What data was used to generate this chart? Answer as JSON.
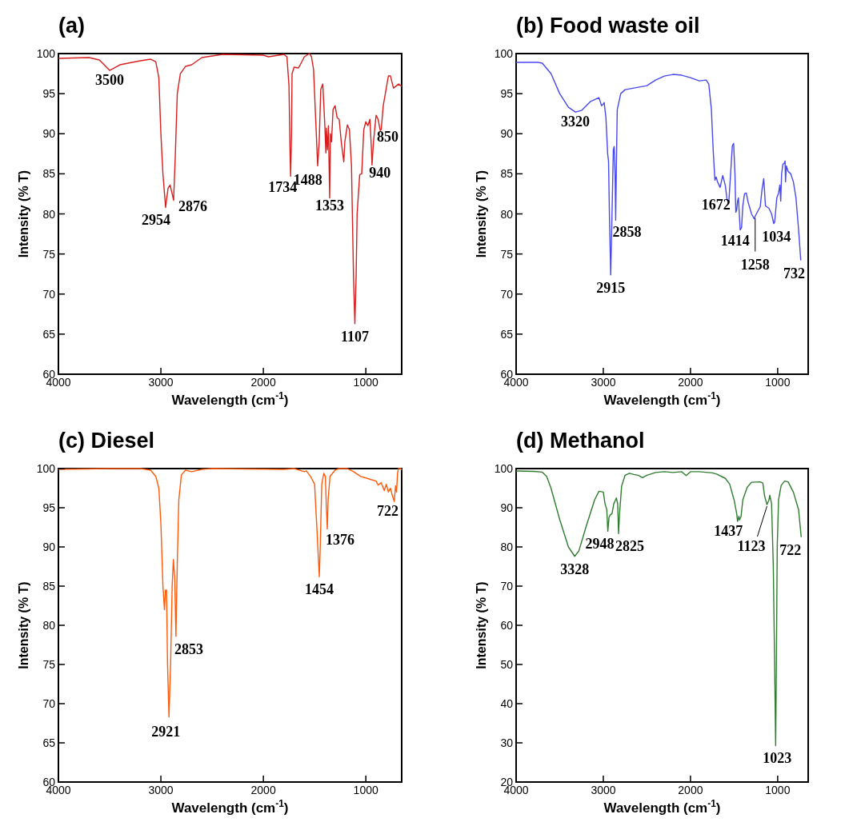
{
  "chart_data": [
    {
      "type": "line",
      "title": "(a)",
      "xlabel": "Wavelength (cm$^{-1}$)",
      "ylabel": "Intensity (% T)",
      "xlim": [
        4000,
        650
      ],
      "ylim": [
        60,
        100
      ],
      "xticks": [
        4000,
        3000,
        2000,
        1000
      ],
      "yticks": [
        60,
        65,
        70,
        75,
        80,
        85,
        90,
        95,
        100
      ],
      "series": [
        {
          "color": "#d81e1e",
          "x": [
            4000,
            3700,
            3600,
            3500,
            3400,
            3200,
            3100,
            3050,
            3020,
            3000,
            2980,
            2954,
            2930,
            2910,
            2890,
            2876,
            2860,
            2840,
            2810,
            2760,
            2700,
            2600,
            2400,
            2000,
            1950,
            1800,
            1770,
            1750,
            1740,
            1734,
            1725,
            1720,
            1700,
            1660,
            1640,
            1600,
            1550,
            1530,
            1510,
            1490,
            1470,
            1455,
            1440,
            1420,
            1400,
            1390,
            1385,
            1375,
            1365,
            1353,
            1345,
            1335,
            1320,
            1300,
            1280,
            1260,
            1240,
            1225,
            1215,
            1205,
            1180,
            1160,
            1140,
            1130,
            1120,
            1107,
            1095,
            1085,
            1060,
            1040,
            1020,
            1000,
            980,
            960,
            945,
            940,
            925,
            900,
            880,
            860,
            850,
            830,
            780,
            760,
            730,
            680,
            650
          ],
          "values": [
            99.4,
            99.5,
            99.2,
            97.9,
            98.6,
            99.1,
            99.3,
            99.0,
            97,
            90,
            85,
            80.8,
            83.2,
            83.6,
            82.5,
            81.7,
            87,
            95,
            97.5,
            98.4,
            98.6,
            99.5,
            99.9,
            99.8,
            99.6,
            99.9,
            99.6,
            96,
            88,
            84.7,
            90,
            97.5,
            98.3,
            98.2,
            98.6,
            99.6,
            100,
            99.6,
            98,
            92,
            86,
            89,
            95.5,
            96.2,
            91,
            87.6,
            90.7,
            88,
            91,
            82,
            90,
            89,
            93,
            93.5,
            92,
            91.8,
            89,
            87.5,
            86.5,
            89,
            91.1,
            90.5,
            86,
            79,
            72,
            66.3,
            72,
            80,
            84.9,
            85,
            90.5,
            91.5,
            91,
            91.8,
            88,
            86.1,
            89,
            92.3,
            91.8,
            90.4,
            90.5,
            93.5,
            97.2,
            97.2,
            95.7,
            96.2,
            95.9
          ]
        }
      ],
      "annotations": [
        {
          "text": "3500",
          "x": 3500,
          "y": 97.9
        },
        {
          "text": "2954",
          "x": 2954,
          "y": 80.8
        },
        {
          "text": "2876",
          "x": 2876,
          "y": 81.7
        },
        {
          "text": "1734",
          "x": 1734,
          "y": 84.7
        },
        {
          "text": "1488",
          "x": 1488,
          "y": 86
        },
        {
          "text": "1353",
          "x": 1353,
          "y": 82
        },
        {
          "text": "1107",
          "x": 1107,
          "y": 66.3
        },
        {
          "text": "940",
          "x": 940,
          "y": 86.1
        },
        {
          "text": "850",
          "x": 850,
          "y": 90.4
        }
      ]
    },
    {
      "type": "line",
      "title": "(b) Food waste oil",
      "xlabel": "Wavelength (cm$^{-1}$)",
      "ylabel": "Intensity (% T)",
      "xlim": [
        4000,
        650
      ],
      "ylim": [
        60,
        100
      ],
      "xticks": [
        4000,
        3000,
        2000,
        1000
      ],
      "yticks": [
        60,
        65,
        70,
        75,
        80,
        85,
        90,
        95,
        100
      ],
      "series": [
        {
          "color": "#4848f0",
          "x": [
            4000,
            3750,
            3700,
            3600,
            3500,
            3400,
            3320,
            3250,
            3150,
            3050,
            3020,
            3000,
            2990,
            2970,
            2950,
            2940,
            2930,
            2915,
            2900,
            2885,
            2875,
            2865,
            2858,
            2850,
            2840,
            2800,
            2750,
            2650,
            2500,
            2400,
            2300,
            2200,
            2100,
            2000,
            1900,
            1820,
            1790,
            1760,
            1740,
            1720,
            1705,
            1690,
            1660,
            1630,
            1600,
            1580,
            1560,
            1540,
            1520,
            1505,
            1490,
            1480,
            1470,
            1460,
            1450,
            1440,
            1430,
            1414,
            1400,
            1380,
            1360,
            1340,
            1300,
            1270,
            1258,
            1230,
            1200,
            1180,
            1160,
            1140,
            1100,
            1070,
            1045,
            1034,
            1010,
            990,
            975,
            965,
            955,
            940,
            925,
            915,
            910,
            900,
            880,
            850,
            820,
            790,
            760,
            735
          ],
          "values": [
            98.9,
            98.9,
            98.8,
            97.5,
            95,
            93.3,
            92.7,
            92.9,
            94,
            94.5,
            93.5,
            93.7,
            93.9,
            92,
            87.5,
            86.6,
            80,
            72.4,
            80,
            88,
            88.4,
            85,
            79.2,
            86,
            93,
            95,
            95.5,
            95.7,
            96,
            96.7,
            97.2,
            97.4,
            97.3,
            97.0,
            96.6,
            96.7,
            96.2,
            93,
            88,
            84.2,
            84.6,
            84,
            83.3,
            84.8,
            83.5,
            81.7,
            81.5,
            85,
            88.5,
            88.8,
            85,
            80.2,
            80.5,
            81.6,
            82,
            80,
            78,
            78.3,
            81,
            82.5,
            82.6,
            81.5,
            80,
            79.4,
            79.7,
            80.3,
            80.9,
            83,
            84.4,
            81,
            80.7,
            80,
            78.8,
            79,
            82,
            82.6,
            83.6,
            81.6,
            85,
            86.2,
            86.3,
            86.6,
            84,
            86,
            85.3,
            85,
            84,
            82,
            78,
            74.2
          ]
        }
      ],
      "annotations": [
        {
          "text": "3320",
          "x": 3320,
          "y": 92.7
        },
        {
          "text": "2915",
          "x": 2915,
          "y": 72.4
        },
        {
          "text": "2858",
          "x": 2858,
          "y": 79.2
        },
        {
          "text": "1672",
          "x": 1672,
          "y": 83.3
        },
        {
          "text": "1414",
          "x": 1414,
          "y": 78.3
        },
        {
          "text": "1258",
          "x": 1258,
          "y": 79.7
        },
        {
          "text": "1034",
          "x": 1034,
          "y": 79
        },
        {
          "text": "732",
          "x": 735,
          "y": 74.2
        }
      ]
    },
    {
      "type": "line",
      "title": "(c) Diesel",
      "xlabel": "Wavelength (cm$^{-1}$)",
      "ylabel": "Intensity (% T)",
      "xlim": [
        4000,
        650
      ],
      "ylim": [
        60,
        100
      ],
      "xticks": [
        4000,
        3000,
        2000,
        1000
      ],
      "yticks": [
        60,
        65,
        70,
        75,
        80,
        85,
        90,
        95,
        100
      ],
      "series": [
        {
          "color": "#ff5a0a",
          "x": [
            4000,
            3500,
            3200,
            3100,
            3050,
            3020,
            3000,
            2980,
            2965,
            2955,
            2945,
            2935,
            2921,
            2905,
            2890,
            2878,
            2865,
            2853,
            2840,
            2825,
            2800,
            2760,
            2700,
            2600,
            2500,
            1800,
            1700,
            1600,
            1580,
            1540,
            1500,
            1480,
            1465,
            1454,
            1445,
            1430,
            1410,
            1395,
            1385,
            1376,
            1368,
            1350,
            1300,
            1260,
            1180,
            1120,
            1050,
            1000,
            950,
            900,
            880,
            850,
            820,
            800,
            780,
            760,
            740,
            722,
            710,
            700,
            690,
            680,
            660,
            650
          ],
          "values": [
            99.9,
            100,
            100,
            99.8,
            99,
            97.5,
            93,
            85,
            82,
            84.5,
            84.5,
            75,
            68.3,
            75,
            85,
            88.4,
            86,
            78.6,
            88,
            96,
            99.2,
            99.8,
            99.6,
            99.9,
            100,
            99.9,
            100,
            99.6,
            99.7,
            99,
            98,
            93,
            89,
            86.2,
            90,
            98,
            99.4,
            99,
            95,
            92.3,
            96,
            99,
            99.8,
            100,
            100,
            99.6,
            99,
            98.8,
            98.6,
            98.4,
            97.9,
            98.2,
            97.2,
            98,
            97,
            97.5,
            96.5,
            95.8,
            97.8,
            97,
            99.5,
            100,
            100,
            99.8
          ]
        }
      ],
      "annotations": [
        {
          "text": "2921",
          "x": 2921,
          "y": 68.3
        },
        {
          "text": "2853",
          "x": 2853,
          "y": 78.6
        },
        {
          "text": "1454",
          "x": 1454,
          "y": 86.2
        },
        {
          "text": "1376",
          "x": 1376,
          "y": 92.3
        },
        {
          "text": "722",
          "x": 722,
          "y": 95.8
        }
      ]
    },
    {
      "type": "line",
      "title": "(d) Methanol",
      "xlabel": "Wavelength (cm$^{-1}$)",
      "ylabel": "Intensity (% T)",
      "xlim": [
        4000,
        650
      ],
      "ylim": [
        20,
        100
      ],
      "xticks": [
        4000,
        3000,
        2000,
        1000
      ],
      "yticks": [
        20,
        30,
        40,
        50,
        60,
        70,
        80,
        90,
        100
      ],
      "series": [
        {
          "color": "#2f7d2f",
          "x": [
            4000,
            3800,
            3700,
            3650,
            3600,
            3500,
            3400,
            3328,
            3280,
            3200,
            3100,
            3050,
            3000,
            2980,
            2960,
            2948,
            2935,
            2920,
            2900,
            2880,
            2850,
            2835,
            2825,
            2815,
            2790,
            2750,
            2700,
            2650,
            2600,
            2550,
            2500,
            2400,
            2300,
            2200,
            2100,
            2050,
            2000,
            1900,
            1800,
            1750,
            1700,
            1600,
            1550,
            1500,
            1470,
            1460,
            1445,
            1437,
            1420,
            1400,
            1350,
            1300,
            1200,
            1170,
            1150,
            1123,
            1100,
            1090,
            1070,
            1050,
            1035,
            1023,
            1015,
            1005,
            990,
            960,
            920,
            880,
            820,
            760,
            730
          ],
          "values": [
            99.4,
            99.3,
            99.1,
            98,
            95,
            87,
            80,
            77.6,
            79,
            85,
            92,
            94.2,
            94,
            91,
            89.5,
            84,
            87.5,
            88.2,
            88.5,
            91,
            92.5,
            91,
            83.4,
            88,
            95.5,
            98.3,
            98.8,
            98.5,
            98.3,
            97.7,
            98.3,
            99,
            99.2,
            99,
            99.2,
            98.2,
            99.2,
            99.2,
            99,
            98.9,
            98.6,
            97.5,
            96,
            92,
            88.5,
            86.5,
            87.8,
            86.9,
            87.8,
            92,
            95.2,
            96.5,
            96.6,
            96.3,
            93,
            90.8,
            92,
            93.2,
            91,
            75,
            50,
            29.3,
            50,
            80,
            92,
            95.7,
            96.8,
            96.6,
            94,
            89.5,
            82.5
          ]
        }
      ],
      "annotations": [
        {
          "text": "3328",
          "x": 3328,
          "y": 77.6
        },
        {
          "text": "2948",
          "x": 2948,
          "y": 84
        },
        {
          "text": "2825",
          "x": 2825,
          "y": 83.4
        },
        {
          "text": "1437",
          "x": 1437,
          "y": 86.9
        },
        {
          "text": "1123",
          "x": 1123,
          "y": 90.8
        },
        {
          "text": "1023",
          "x": 1023,
          "y": 29.3
        },
        {
          "text": "722",
          "x": 730,
          "y": 82.5
        }
      ]
    }
  ]
}
